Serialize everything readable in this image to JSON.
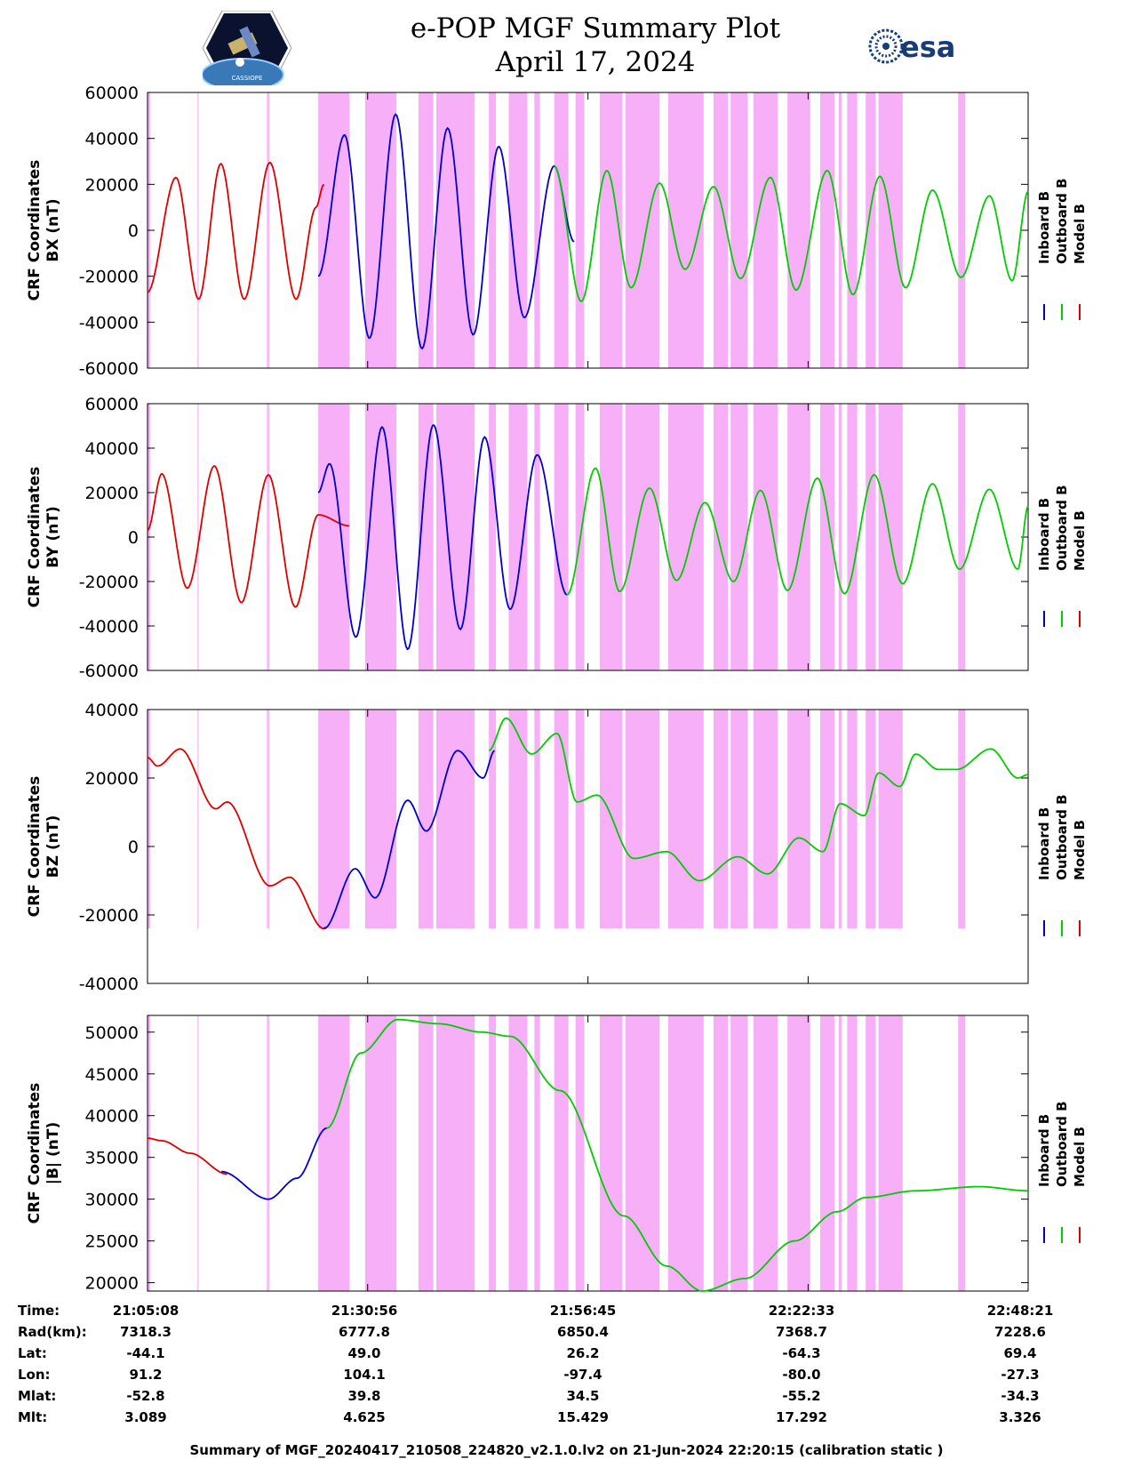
{
  "header": {
    "title": "e-POP MGF Summary Plot",
    "date": "April 17, 2024",
    "logo_left": "CASSIOPE",
    "logo_right": "esa"
  },
  "colors": {
    "inboard": "#0000cc",
    "outboard": "#00cc00",
    "model": "#dd0000",
    "shading": "#f7b0f7"
  },
  "legend": [
    "Inboard B",
    "Outboard B",
    "Model B"
  ],
  "time_range_sec": [
    0,
    6192
  ],
  "shaded_intervals_sec": [
    [
      0,
      18
    ],
    [
      352,
      355
    ],
    [
      840,
      845
    ],
    [
      848,
      850
    ],
    [
      1200,
      1420
    ],
    [
      1530,
      1750
    ],
    [
      1905,
      2010
    ],
    [
      2030,
      2300
    ],
    [
      2400,
      2450
    ],
    [
      2540,
      2670
    ],
    [
      2720,
      2760
    ],
    [
      2860,
      2960
    ],
    [
      3010,
      3070
    ],
    [
      3180,
      3340
    ],
    [
      3360,
      3600
    ],
    [
      3660,
      3910
    ],
    [
      3980,
      4080
    ],
    [
      4100,
      4220
    ],
    [
      4260,
      4430
    ],
    [
      4500,
      4660
    ],
    [
      4730,
      4830
    ],
    [
      4860,
      4880
    ],
    [
      4920,
      4990
    ],
    [
      5050,
      5120
    ],
    [
      5140,
      5310
    ],
    [
      5700,
      5750
    ]
  ],
  "chart_data": [
    {
      "type": "line",
      "ylabel": "CRF Coordinates\nBX (nT)",
      "ylim": [
        -60000,
        60000
      ],
      "yticks": [
        60000,
        40000,
        20000,
        0,
        -20000,
        -40000,
        -60000
      ],
      "shade_ylim": [
        -60000,
        60000
      ],
      "series": [
        {
          "name": "Model B",
          "color_key": "model",
          "t_range": [
            0,
            1240
          ],
          "t": [
            0,
            200,
            360,
            515,
            680,
            860,
            1045,
            1185,
            1240
          ],
          "v": [
            -27000,
            23000,
            -30000,
            29000,
            -30000,
            29500,
            -30000,
            10000,
            20000
          ]
        },
        {
          "name": "Inboard B",
          "color_key": "inboard",
          "t_range": [
            1200,
            3000
          ],
          "t": [
            1200,
            1385,
            1560,
            1745,
            1930,
            2110,
            2290,
            2470,
            2650,
            2860,
            3000
          ],
          "v": [
            -20000,
            41500,
            -47000,
            50500,
            -51500,
            44500,
            -45500,
            36500,
            -38000,
            28000,
            -5000
          ]
        },
        {
          "name": "Outboard B",
          "color_key": "outboard",
          "t_range": [
            2860,
            6192
          ],
          "t": [
            2860,
            3050,
            3230,
            3400,
            3600,
            3780,
            3980,
            4170,
            4380,
            4560,
            4780,
            4960,
            5150,
            5330,
            5520,
            5720,
            5920,
            6080,
            6192
          ],
          "v": [
            28000,
            -31000,
            26000,
            -25000,
            20500,
            -17000,
            19000,
            -21000,
            23000,
            -26000,
            26000,
            -28000,
            23500,
            -25000,
            17500,
            -20500,
            15000,
            -22000,
            17000
          ]
        }
      ]
    },
    {
      "type": "line",
      "ylabel": "CRF Coordinates\nBY (nT)",
      "ylim": [
        -60000,
        60000
      ],
      "yticks": [
        60000,
        40000,
        20000,
        0,
        -20000,
        -40000,
        -60000
      ],
      "shade_ylim": [
        -60000,
        60000
      ],
      "series": [
        {
          "name": "Model B",
          "color_key": "model",
          "t_range": [
            0,
            1420
          ],
          "t": [
            0,
            100,
            280,
            470,
            660,
            850,
            1040,
            1200,
            1420
          ],
          "v": [
            3000,
            28500,
            -23000,
            32000,
            -29500,
            28000,
            -31500,
            10000,
            5000
          ]
        },
        {
          "name": "Inboard B",
          "color_key": "inboard",
          "t_range": [
            1200,
            2950
          ],
          "t": [
            1200,
            1280,
            1465,
            1650,
            1830,
            2010,
            2200,
            2370,
            2550,
            2740,
            2950
          ],
          "v": [
            20000,
            33000,
            -45000,
            49500,
            -50500,
            50500,
            -41500,
            45000,
            -32500,
            37000,
            -26000
          ]
        },
        {
          "name": "Outboard B",
          "color_key": "outboard",
          "t_range": [
            2950,
            6192
          ],
          "t": [
            2950,
            3150,
            3320,
            3530,
            3720,
            3920,
            4120,
            4310,
            4500,
            4710,
            4900,
            5110,
            5310,
            5520,
            5710,
            5920,
            6120,
            6192
          ],
          "v": [
            -26000,
            31000,
            -24500,
            22000,
            -19500,
            15500,
            -20000,
            21000,
            -24000,
            26500,
            -25500,
            28000,
            -21000,
            24000,
            -14500,
            21500,
            -14500,
            14000
          ]
        }
      ]
    },
    {
      "type": "line",
      "ylabel": "CRF Coordinates\nBZ (nT)",
      "ylim": [
        -40000,
        40000
      ],
      "yticks": [
        40000,
        20000,
        0,
        -20000,
        -40000
      ],
      "shade_ylim": [
        -24000,
        40000
      ],
      "series": [
        {
          "name": "Model B",
          "color_key": "model",
          "t_range": [
            0,
            1250
          ],
          "t": [
            0,
            70,
            230,
            480,
            560,
            860,
            1000,
            1240,
            1250
          ],
          "v": [
            26000,
            23500,
            28500,
            11000,
            13000,
            -11500,
            -9000,
            -24000,
            -23500
          ]
        },
        {
          "name": "Inboard B",
          "color_key": "inboard",
          "t_range": [
            1240,
            2440
          ],
          "t": [
            1240,
            1460,
            1600,
            1830,
            1960,
            2180,
            2360,
            2440
          ],
          "v": [
            -24000,
            -6500,
            -15000,
            13500,
            4500,
            28000,
            20000,
            28000
          ]
        },
        {
          "name": "Outboard B",
          "color_key": "outboard",
          "t_range": [
            2400,
            6192
          ],
          "t": [
            2400,
            2520,
            2700,
            2880,
            3020,
            3160,
            3420,
            3650,
            3880,
            4150,
            4360,
            4580,
            4750,
            4870,
            5040,
            5140,
            5290,
            5400,
            5560,
            5690,
            5930,
            6120,
            6192
          ],
          "v": [
            28000,
            37500,
            27000,
            33000,
            13000,
            15000,
            -3500,
            -1500,
            -10000,
            -3000,
            -8000,
            2500,
            -1500,
            12500,
            9000,
            21500,
            17500,
            27000,
            22500,
            22500,
            28500,
            20000,
            21000
          ]
        }
      ]
    },
    {
      "type": "line",
      "ylabel": "CRF Coordinates\n|B| (nT)",
      "ylim": [
        19000,
        52000
      ],
      "yticks": [
        50000,
        45000,
        40000,
        35000,
        30000,
        25000,
        20000
      ],
      "shade_ylim": [
        19000,
        52000
      ],
      "series": [
        {
          "name": "Model B",
          "color_key": "model",
          "t_range": [
            0,
            560
          ],
          "t": [
            0,
            100,
            300,
            560
          ],
          "v": [
            37300,
            37000,
            35500,
            33000
          ]
        },
        {
          "name": "Inboard B",
          "color_key": "inboard",
          "t_range": [
            520,
            1260
          ],
          "t": [
            520,
            850,
            1050,
            1260
          ],
          "v": [
            33300,
            30000,
            32500,
            38500
          ]
        },
        {
          "name": "Outboard B",
          "color_key": "outboard",
          "t_range": [
            1260,
            6192
          ],
          "t": [
            1260,
            1500,
            1760,
            2050,
            2350,
            2550,
            2900,
            3350,
            3650,
            3900,
            4200,
            4550,
            4850,
            5050,
            5400,
            5850,
            6192
          ],
          "v": [
            38500,
            47500,
            51500,
            51000,
            50000,
            49500,
            43000,
            28000,
            22000,
            19000,
            20500,
            25000,
            28500,
            30200,
            31000,
            31500,
            31000
          ]
        }
      ]
    }
  ],
  "ephemeris": {
    "labels": [
      "Time:",
      "Rad(km):",
      "Lat:",
      "Lon:",
      "Mlat:",
      "Mlt:"
    ],
    "columns": [
      [
        "21:05:08",
        "7318.3",
        "-44.1",
        "91.2",
        "-52.8",
        "3.089"
      ],
      [
        "21:30:56",
        "6777.8",
        "49.0",
        "104.1",
        "39.8",
        "4.625"
      ],
      [
        "21:56:45",
        "6850.4",
        "26.2",
        "-97.4",
        "34.5",
        "15.429"
      ],
      [
        "22:22:33",
        "7368.7",
        "-64.3",
        "-80.0",
        "-55.2",
        "17.292"
      ],
      [
        "22:48:21",
        "7228.6",
        "69.4",
        "-27.3",
        "-34.3",
        "3.326"
      ]
    ]
  },
  "footer": "Summary of MGF_20240417_210508_224820_v2.1.0.lv2 on 21-Jun-2024 22:20:15 (calibration static )"
}
